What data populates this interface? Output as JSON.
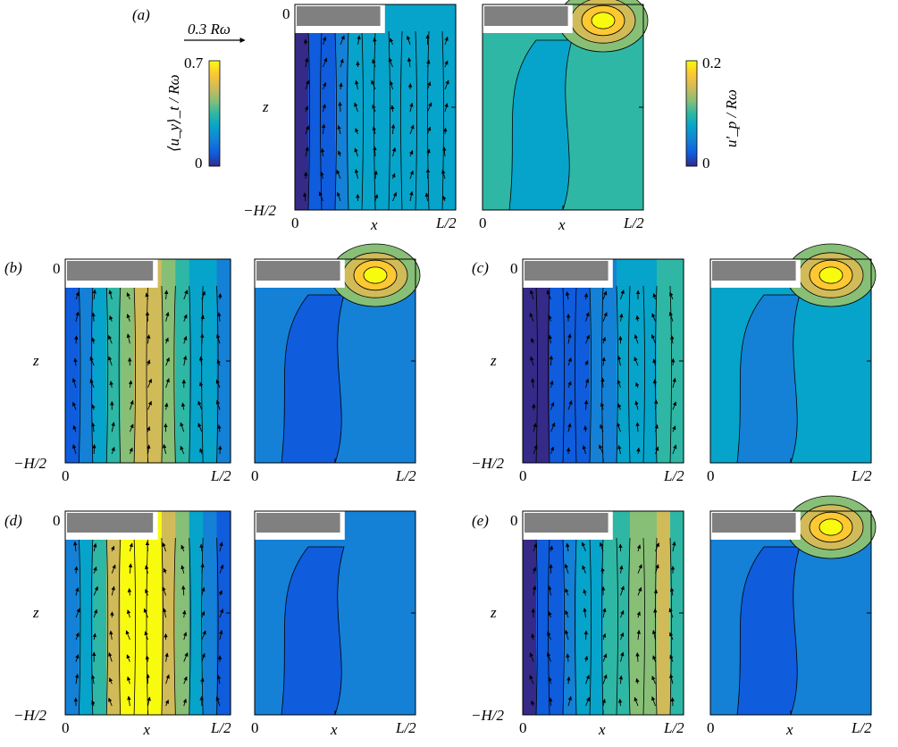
{
  "figure": {
    "panel_labels": [
      "(a)",
      "(b)",
      "(c)",
      "(d)",
      "(e)"
    ],
    "axis": {
      "x_label": "x",
      "z_label": "z",
      "x_tick_start": "0",
      "x_tick_end": "L/2",
      "z_tick_top": "0",
      "z_tick_bottom": "−H/2"
    },
    "reference_arrow_label": "0.3 Rω",
    "colorbar_mean": {
      "label": "⟨u_y⟩_t / Rω",
      "max_label": "0.7",
      "min_label": "0",
      "min": 0,
      "max": 0.7
    },
    "colorbar_fluct": {
      "label": "u′_p / Rω",
      "max_label": "0.2",
      "min_label": "0",
      "min": 0,
      "max": 0.2
    },
    "colormap": [
      "#352a87",
      "#0f5cdd",
      "#1481d6",
      "#06a4ca",
      "#2eb7a4",
      "#87bf77",
      "#d1bb59",
      "#fec832",
      "#f9fb0e"
    ],
    "contour_line_color": "#000000",
    "blade_color": "#808080"
  }
}
